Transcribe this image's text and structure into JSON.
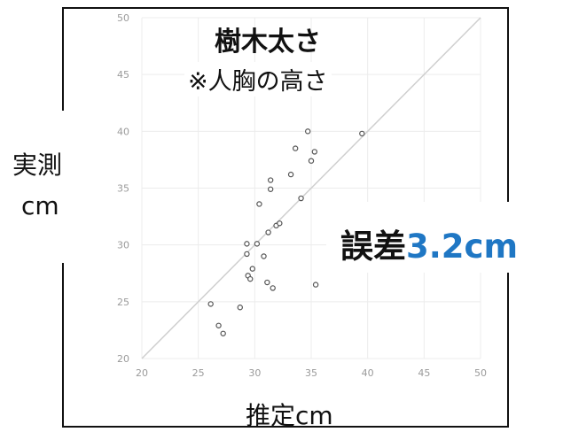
{
  "chart_data": {
    "type": "scatter",
    "title": "樹木太さ",
    "subtitle": "※人胸の高さ",
    "xlabel": "推定cm",
    "ylabel_line1": "実測",
    "ylabel_line2": "cm",
    "xlim": [
      20,
      50
    ],
    "ylim": [
      20,
      50
    ],
    "xticks": [
      "20",
      "25",
      "30",
      "35",
      "40",
      "45",
      "50"
    ],
    "yticks": [
      "20",
      "25",
      "30",
      "35",
      "40",
      "45",
      "50"
    ],
    "grid": true,
    "reference_line": "y = x",
    "annotation_prefix": "誤差",
    "annotation_value": "3.2cm",
    "annotation_color": "#1f77c4",
    "points": [
      [
        26.1,
        24.8
      ],
      [
        26.8,
        22.9
      ],
      [
        27.2,
        22.2
      ],
      [
        28.7,
        24.5
      ],
      [
        29.3,
        30.1
      ],
      [
        29.3,
        29.2
      ],
      [
        29.4,
        27.3
      ],
      [
        29.6,
        27.0
      ],
      [
        29.8,
        27.9
      ],
      [
        30.2,
        30.1
      ],
      [
        30.4,
        33.6
      ],
      [
        30.8,
        29.0
      ],
      [
        31.1,
        26.7
      ],
      [
        31.2,
        31.1
      ],
      [
        31.4,
        35.7
      ],
      [
        31.4,
        34.9
      ],
      [
        31.6,
        26.2
      ],
      [
        31.9,
        31.7
      ],
      [
        32.2,
        31.9
      ],
      [
        33.2,
        36.2
      ],
      [
        33.6,
        38.5
      ],
      [
        34.1,
        34.1
      ],
      [
        34.7,
        40.0
      ],
      [
        35.0,
        37.4
      ],
      [
        35.3,
        38.2
      ],
      [
        35.4,
        26.5
      ],
      [
        39.5,
        39.8
      ]
    ]
  }
}
